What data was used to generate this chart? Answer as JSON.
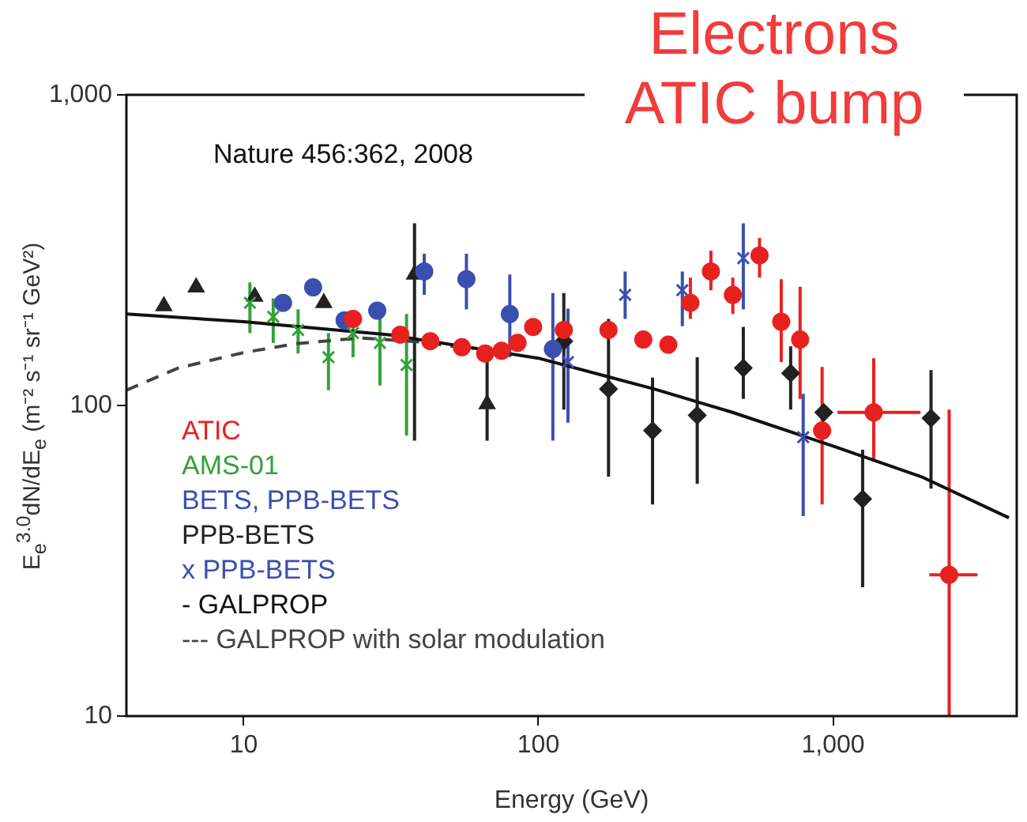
{
  "chart_data": {
    "type": "scatter",
    "title": "Electrons ATIC bump",
    "xlabel": "Energy (GeV)",
    "ylabel": "E$_{e}$$^{3.0}$dN/dE$_{e}$ (m⁻² s⁻¹ sr⁻¹ GeV²)",
    "annotations": [
      "Nature 456:362, 2008"
    ],
    "log": "xy",
    "grid": false,
    "legend": "bottom left",
    "xlim": [
      4,
      4200
    ],
    "xticks": [
      10,
      100,
      {
        "value": 1000,
        "label": "1,000"
      }
    ],
    "ylim": [
      10,
      1000
    ],
    "yticks": [
      10,
      100,
      {
        "value": 1000,
        "label": "1,000"
      }
    ],
    "series": [
      {
        "name": "ATIC",
        "color": "#e8211f",
        "marker": "circle",
        "x": [
          23.5,
          34,
          43,
          55,
          66,
          75,
          85,
          96,
          122,
          173,
          227,
          276,
          328,
          385,
          457,
          563,
          667,
          773,
          918,
          1374,
          2477
        ],
        "values": [
          190,
          169,
          161,
          154,
          147,
          150,
          159,
          179,
          175,
          175,
          163,
          157,
          214,
          270,
          227,
          304,
          186,
          163,
          83,
          95,
          28.5
        ],
        "errors": [
          null,
          null,
          null,
          null,
          null,
          null,
          null,
          null,
          null,
          null,
          null,
          null,
          [
            190,
            258
          ],
          [
            235,
            315
          ],
          [
            197,
            258
          ],
          [
            258,
            346
          ],
          [
            138,
            255
          ],
          [
            105,
            241
          ],
          [
            48,
            133
          ],
          [
            66,
            142
          ],
          [
            10,
            97
          ]
        ],
        "xerrors": [
          null,
          null,
          null,
          null,
          null,
          null,
          null,
          null,
          null,
          null,
          null,
          null,
          null,
          null,
          null,
          null,
          null,
          null,
          null,
          [
            1035,
            1980
          ],
          [
            2120,
            3090
          ]
        ]
      },
      {
        "name": "AMS-01",
        "color": "#35a03a",
        "marker": "cross",
        "x": [
          10.5,
          12.6,
          15.3,
          19.4,
          23.5,
          29,
          35.7
        ],
        "values": [
          214,
          193,
          175,
          143,
          171,
          159,
          135
        ],
        "errors": [
          [
            171,
            249
          ],
          [
            159,
            221
          ],
          [
            147,
            204
          ],
          [
            112,
            171
          ],
          [
            143,
            197
          ],
          [
            116,
            193
          ],
          [
            80,
            197
          ]
        ]
      },
      {
        "name": "BETS, PPB-BETS",
        "color": "#3b4fb0",
        "marker": "circle",
        "x": [
          13.6,
          17.2,
          22,
          28.4,
          41,
          57,
          80,
          112
        ],
        "values": [
          214,
          240,
          188,
          202,
          270,
          255,
          197,
          152
        ],
        "errors": [
          null,
          null,
          null,
          null,
          [
            227,
            308
          ],
          [
            204,
            308
          ],
          [
            143,
            264
          ],
          [
            77,
            230
          ]
        ]
      },
      {
        "name": "PPB-BETS",
        "color": "#222222",
        "marker": "diamond",
        "x": [
          122,
          173,
          244,
          346,
          496,
          718,
          930,
          1260,
          2150
        ],
        "values": [
          161,
          113,
          83,
          93,
          132,
          127,
          95,
          50,
          91
        ],
        "errors": [
          [
            97,
            230
          ],
          [
            59,
            190
          ],
          [
            48,
            123
          ],
          [
            56,
            143
          ],
          [
            105,
            179
          ],
          [
            97,
            155
          ],
          null,
          [
            26,
            72
          ],
          [
            54,
            130
          ]
        ]
      },
      {
        "name": "x PPB-BETS",
        "color": "#3b4fb0",
        "marker": "cross",
        "x": [
          126,
          197,
          308,
          496,
          792
        ],
        "values": [
          138,
          227,
          235,
          298,
          79
        ],
        "errors": [
          [
            88,
            205
          ],
          [
            190,
            270
          ],
          [
            180,
            270
          ],
          [
            204,
            386
          ],
          [
            44,
            109
          ]
        ]
      },
      {
        "color": "#222222",
        "marker": "triangle",
        "x": [
          5.36,
          6.9,
          10.9,
          18.7,
          38,
          67
        ],
        "values": [
          209,
          240,
          224,
          214,
          264,
          101
        ],
        "errors": [
          null,
          null,
          null,
          null,
          [
            77,
            386
          ],
          [
            77,
            138
          ]
        ]
      },
      {
        "name": "- GALPROP",
        "color": "#111111",
        "type": "line",
        "marker": "none",
        "line_style": "solid",
        "x": [
          4,
          10,
          31,
          100,
          247,
          456,
          1000,
          1990,
          3950
        ],
        "values": [
          197,
          186,
          169,
          142,
          113,
          95,
          74,
          59,
          43.5
        ]
      },
      {
        "name": "--- GALPROP with solar modulation",
        "color": "#444444",
        "type": "line",
        "marker": "none",
        "line_style": "dashed",
        "x": [
          4,
          6,
          10,
          15,
          25,
          40,
          60
        ],
        "values": [
          112,
          132,
          148,
          158,
          165,
          160,
          152
        ]
      }
    ]
  }
}
